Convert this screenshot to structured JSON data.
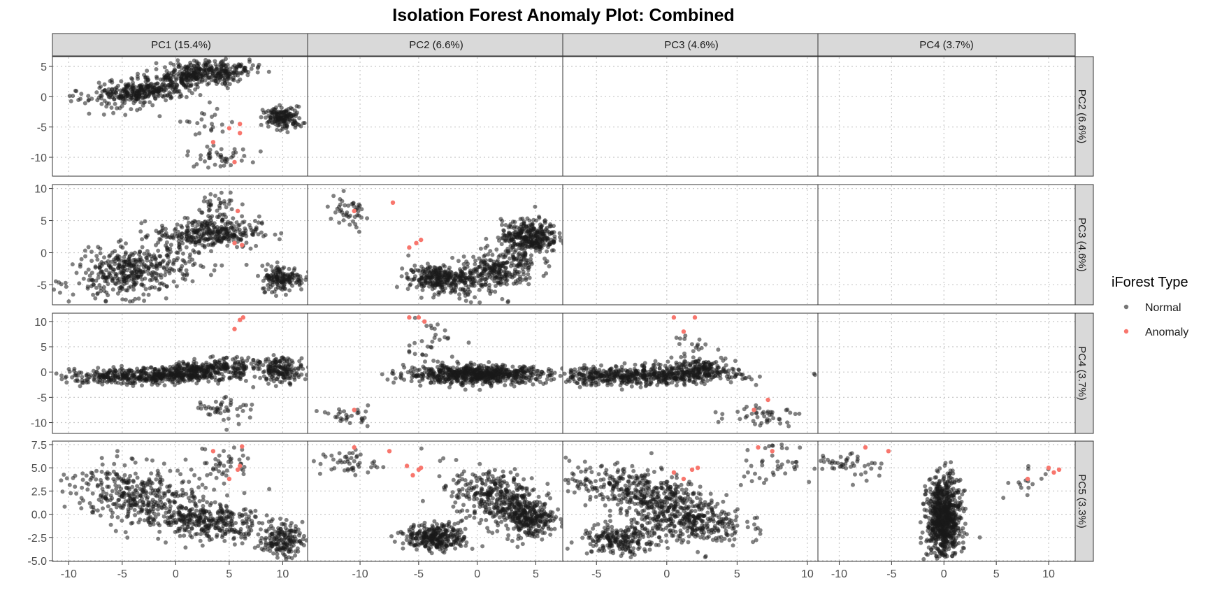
{
  "title": "Isolation Forest Anomaly Plot: Combined",
  "legend": {
    "title": "iForest Type",
    "entries": [
      {
        "label": "Normal",
        "color": "#1a1a1a"
      },
      {
        "label": "Anomaly",
        "color": "#f8766d"
      }
    ]
  },
  "colors": {
    "normal": "#1a1a1a",
    "anomaly": "#f8766d",
    "strip": "#d9d9d9",
    "grid": "#c8c8c8"
  },
  "chart_data": {
    "type": "scatter",
    "layout": "scatterplot-matrix, lower triangle",
    "column_strips": [
      "PC1 (15.4%)",
      "PC2 (6.6%)",
      "PC3 (4.6%)",
      "PC4 (3.7%)"
    ],
    "row_strips": [
      "PC2 (6.6%)",
      "PC3 (4.6%)",
      "PC4 (3.7%)",
      "PC5 (3.3%)"
    ],
    "x_axes": [
      {
        "lim": [
          -11,
          12
        ],
        "ticks": [
          "-10",
          "-5",
          "0",
          "5",
          "10"
        ],
        "tick_values": [
          -10,
          -5,
          0,
          5,
          10
        ]
      },
      {
        "lim": [
          -14,
          7
        ],
        "ticks": [
          "-10",
          "-5",
          "0",
          "5"
        ],
        "tick_values": [
          -10,
          -5,
          0,
          5
        ]
      },
      {
        "lim": [
          -7,
          10.5
        ],
        "ticks": [
          "-5",
          "0",
          "5",
          "10"
        ],
        "tick_values": [
          -5,
          0,
          5,
          10
        ]
      },
      {
        "lim": [
          -11.5,
          12
        ],
        "ticks": [
          "-10",
          "-5",
          "0",
          "5",
          "10"
        ],
        "tick_values": [
          -10,
          -5,
          0,
          5,
          10
        ]
      }
    ],
    "y_axes": [
      {
        "lim": [
          -13,
          6.5
        ],
        "ticks": [
          "5",
          "0",
          "-5",
          "-10"
        ],
        "tick_values": [
          5,
          0,
          -5,
          -10
        ]
      },
      {
        "lim": [
          -8,
          10.5
        ],
        "ticks": [
          "10",
          "5",
          "0",
          "-5"
        ],
        "tick_values": [
          10,
          5,
          0,
          -5
        ]
      },
      {
        "lim": [
          -12,
          11.5
        ],
        "ticks": [
          "10",
          "5",
          "0",
          "-5",
          "-10"
        ],
        "tick_values": [
          10,
          5,
          0,
          -5,
          -10
        ]
      },
      {
        "lim": [
          -5,
          7.8
        ],
        "ticks": [
          "7.5",
          "5.0",
          "2.5",
          "0.0",
          "-2.5",
          "-5.0"
        ],
        "tick_values": [
          7.5,
          5,
          2.5,
          0,
          -2.5,
          -5
        ]
      }
    ],
    "grid": true,
    "legend_position": "right",
    "anomaly_points": {
      "0-0": [
        [
          3.5,
          -7.5
        ],
        [
          5,
          -5.2
        ],
        [
          6,
          -4.5
        ],
        [
          6,
          -6
        ],
        [
          5.5,
          -10.8
        ]
      ],
      "0-1": [
        [
          5.8,
          6.5
        ],
        [
          6.2,
          1.2
        ],
        [
          5.5,
          1.5
        ]
      ],
      "0-2": [
        [
          5.5,
          8.5
        ],
        [
          6,
          10.3
        ],
        [
          6.3,
          10.8
        ]
      ],
      "0-3": [
        [
          3.5,
          6.8
        ],
        [
          5,
          3.8
        ],
        [
          5.8,
          4.8
        ],
        [
          6.2,
          7.3
        ],
        [
          6,
          5.2
        ]
      ],
      "1-1": [
        [
          -10.5,
          6.5
        ],
        [
          -7.2,
          7.8
        ],
        [
          -5.8,
          0.8
        ],
        [
          -5.2,
          1.5
        ],
        [
          -4.8,
          2
        ]
      ],
      "1-2": [
        [
          -10.5,
          -7.5
        ],
        [
          -5.8,
          10.8
        ],
        [
          -5,
          10.8
        ],
        [
          -4.5,
          10
        ]
      ],
      "1-3": [
        [
          -10.5,
          7.2
        ],
        [
          -7.5,
          6.8
        ],
        [
          -6,
          5.2
        ],
        [
          -5.5,
          4.2
        ],
        [
          -5,
          4.8
        ],
        [
          -4.8,
          5
        ]
      ],
      "2-2": [
        [
          0.5,
          10.8
        ],
        [
          1.2,
          8
        ],
        [
          2,
          10.8
        ],
        [
          6.2,
          -7.5
        ],
        [
          7.2,
          -5.5
        ]
      ],
      "2-3": [
        [
          0.5,
          4.5
        ],
        [
          1.2,
          3.8
        ],
        [
          1.8,
          4.8
        ],
        [
          2.2,
          5
        ],
        [
          6.5,
          7.2
        ],
        [
          7.5,
          6.8
        ]
      ],
      "3-3": [
        [
          -7.5,
          7.2
        ],
        [
          -5.3,
          6.8
        ],
        [
          8,
          3.8
        ],
        [
          10,
          5
        ],
        [
          10.5,
          4.5
        ],
        [
          11,
          4.8
        ]
      ]
    }
  }
}
